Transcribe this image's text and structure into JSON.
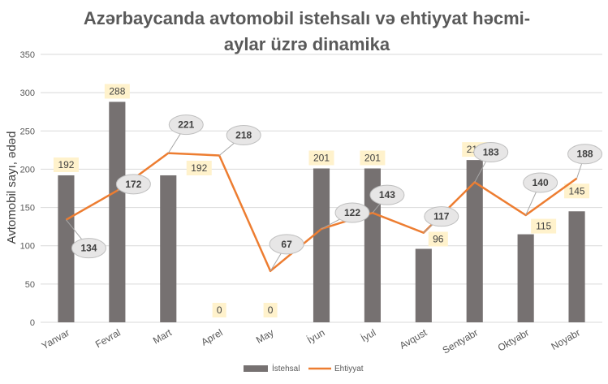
{
  "chart_data": {
    "type": "bar+line",
    "title": "Azərbaycanda avtomobil istehsalı və ehtiyyat həcmi-aylar üzrə dinamika",
    "title_lines": [
      "Azərbaycanda avtomobil istehsalı və ehtiyyat həcmi-",
      "aylar üzrə dinamika"
    ],
    "ylabel": "Avtomobil sayı, ədəd",
    "xlabel": "",
    "ylim": [
      0,
      350
    ],
    "yticks": [
      0,
      50,
      100,
      150,
      200,
      250,
      300,
      350
    ],
    "grid": true,
    "legend_position": "bottom",
    "categories": [
      "Yanvar",
      "Fevral",
      "Mart",
      "Aprel",
      "May",
      "İyun",
      "İyul",
      "Avqust",
      "Sentyabr",
      "Oktyabr",
      "Noyabr"
    ],
    "series": [
      {
        "name": "İstehsal",
        "type": "bar",
        "color": "#767171",
        "label_bg": "#fff2cc",
        "values": [
          192,
          288,
          192,
          0,
          0,
          201,
          201,
          96,
          212,
          115,
          145
        ]
      },
      {
        "name": "Ehtiyyat",
        "type": "line",
        "color": "#ed7d31",
        "label_bg": "#e7e6e6",
        "values": [
          134,
          172,
          221,
          218,
          67,
          122,
          143,
          117,
          183,
          140,
          188
        ]
      }
    ]
  }
}
